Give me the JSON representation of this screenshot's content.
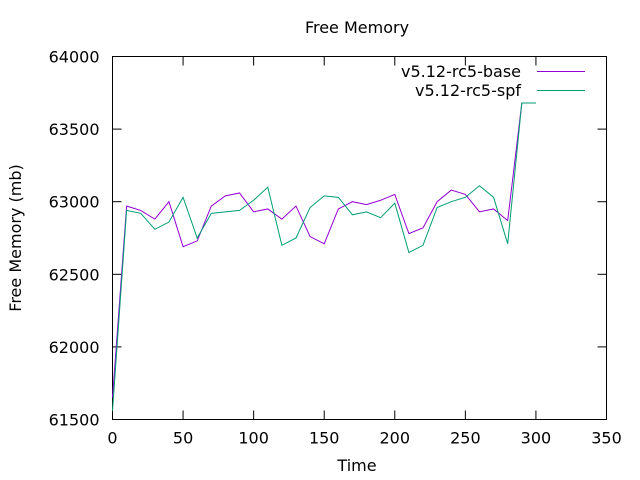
{
  "chart_data": {
    "type": "line",
    "title": "Free Memory",
    "xlabel": "Time",
    "ylabel": "Free Memory (mb)",
    "xlim": [
      0,
      350
    ],
    "ylim": [
      61500,
      64000
    ],
    "xticks": [
      0,
      50,
      100,
      150,
      200,
      250,
      300,
      350
    ],
    "yticks": [
      61500,
      62000,
      62500,
      63000,
      63500,
      64000
    ],
    "grid": false,
    "legend_position": "top-right",
    "series": [
      {
        "name": "v5.12-rc5-base",
        "color": "#9400d3",
        "x": [
          0,
          10,
          20,
          30,
          40,
          50,
          60,
          70,
          80,
          90,
          100,
          110,
          120,
          130,
          140,
          150,
          160,
          170,
          180,
          190,
          200,
          210,
          220,
          230,
          240,
          250,
          260,
          270,
          280,
          290,
          300
        ],
        "y": [
          61650,
          62970,
          62940,
          62880,
          63000,
          62690,
          62730,
          62970,
          63040,
          63060,
          62930,
          62950,
          62880,
          62970,
          62760,
          62710,
          62950,
          63000,
          62980,
          63010,
          63050,
          62780,
          62820,
          63000,
          63080,
          63050,
          62930,
          62950,
          62870,
          63680,
          63680
        ]
      },
      {
        "name": "v5.12-rc5-spf",
        "color": "#009e73",
        "x": [
          0,
          10,
          20,
          30,
          40,
          50,
          60,
          70,
          80,
          90,
          100,
          110,
          120,
          130,
          140,
          150,
          160,
          170,
          180,
          190,
          200,
          210,
          220,
          230,
          240,
          250,
          260,
          270,
          280,
          290,
          300
        ],
        "y": [
          61560,
          62940,
          62920,
          62810,
          62860,
          63030,
          62750,
          62920,
          62930,
          62940,
          63010,
          63100,
          62700,
          62750,
          62960,
          63040,
          63030,
          62910,
          62930,
          62890,
          62990,
          62650,
          62700,
          62960,
          63000,
          63030,
          63110,
          63030,
          62710,
          63680,
          63680
        ]
      }
    ]
  }
}
